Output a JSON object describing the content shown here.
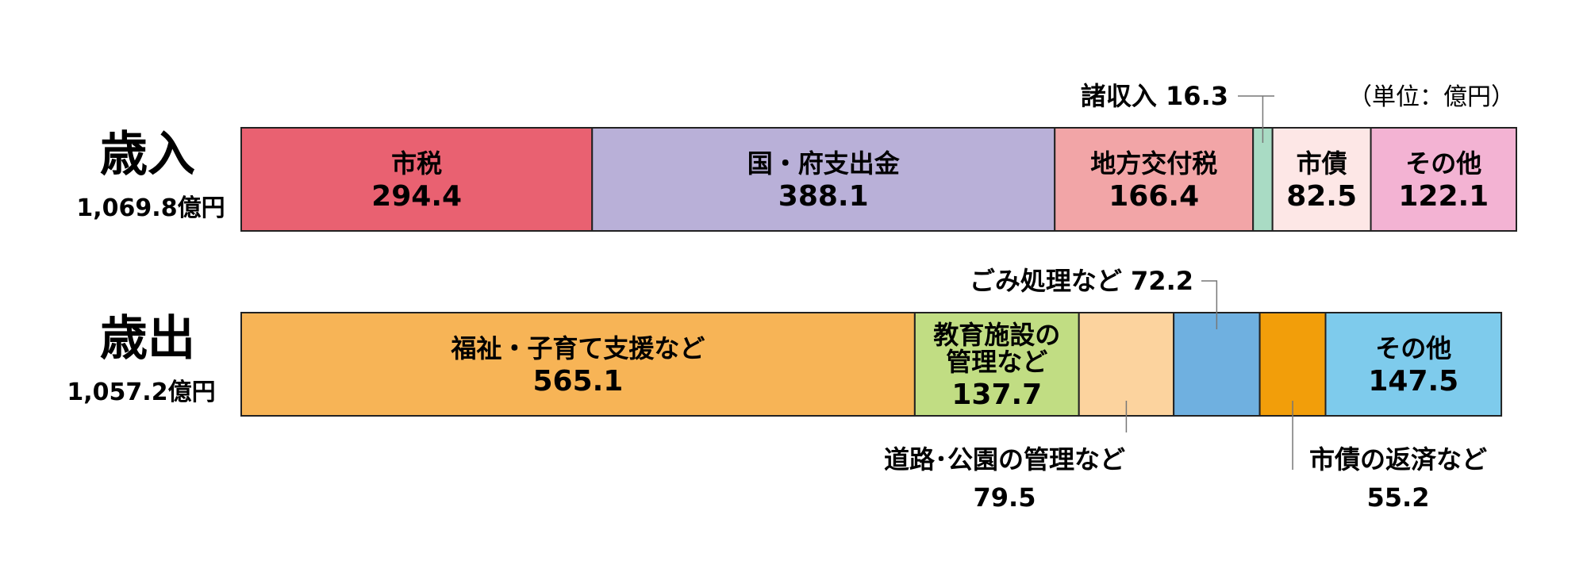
{
  "unit_label": "（単位：億円）",
  "chart_data": [
    {
      "type": "bar",
      "orientation": "horizontal-stacked",
      "title": "歳入",
      "total_label": "1,069.8億円",
      "total": 1069.8,
      "segments": [
        {
          "name": "市税",
          "value": 294.4,
          "value_label": "294.4",
          "color": "#e96171"
        },
        {
          "name": "国・府支出金",
          "value": 388.1,
          "value_label": "388.1",
          "color": "#b9b0d8"
        },
        {
          "name": "地方交付税",
          "value": 166.4,
          "value_label": "166.4",
          "color": "#f2a5a7"
        },
        {
          "name": "諸収入",
          "value": 16.3,
          "value_label": "16.3",
          "color": "#a9dbc4",
          "callout": "諸収入 16.3"
        },
        {
          "name": "市債",
          "value": 82.5,
          "value_label": "82.5",
          "color": "#fde7e6"
        },
        {
          "name": "その他",
          "value": 122.1,
          "value_label": "122.1",
          "color": "#f3b3d3"
        }
      ]
    },
    {
      "type": "bar",
      "orientation": "horizontal-stacked",
      "title": "歳出",
      "total_label": "1,057.2億円",
      "total": 1057.2,
      "segments": [
        {
          "name": "福祉・子育て支援など",
          "value": 565.1,
          "value_label": "565.1",
          "color": "#f7b456"
        },
        {
          "name": "教育施設の管理など",
          "name_lines": [
            "教育施設の",
            "管理など"
          ],
          "value": 137.7,
          "value_label": "137.7",
          "color": "#c1dd83"
        },
        {
          "name": "道路・公園の管理など",
          "value": 79.5,
          "value_label": "79.5",
          "color": "#fcd39e",
          "callout": "道路･公園の管理など",
          "callout_value": "79.5"
        },
        {
          "name": "ごみ処理など",
          "value": 72.2,
          "value_label": "72.2",
          "color": "#6fb0e0",
          "callout": "ごみ処理など 72.2"
        },
        {
          "name": "市債の返済など",
          "value": 55.2,
          "value_label": "55.2",
          "color": "#f29e0a",
          "callout": "市債の返済など",
          "callout_value": "55.2"
        },
        {
          "name": "その他",
          "value": 147.5,
          "value_label": "147.5",
          "color": "#7ecbec"
        }
      ]
    }
  ]
}
